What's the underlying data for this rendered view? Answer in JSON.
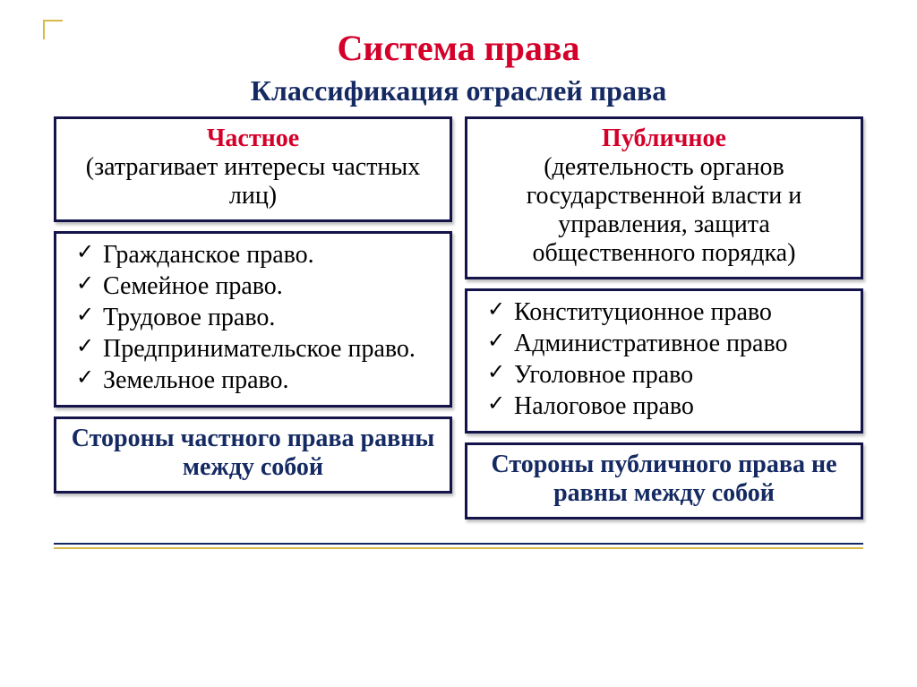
{
  "colors": {
    "title": "#d4002a",
    "subtitle": "#152a63",
    "border": "#14144a",
    "accent_red": "#d4002a",
    "footer_text": "#152a63",
    "rule_blue": "#152a63",
    "rule_gold": "#d9b84a"
  },
  "title": "Система права",
  "subtitle": "Классификация отраслей права",
  "left": {
    "head_label": "Частное",
    "head_desc": "(затрагивает интересы частных лиц)",
    "items": [
      "Гражданское право.",
      "Семейное право.",
      "Трудовое право.",
      "Предпринимательское право.",
      "Земельное право."
    ],
    "footer": "Стороны частного права равны между собой"
  },
  "right": {
    "head_label": "Публичное",
    "head_desc": "(деятельность органов государственной власти и управления, защита общественного порядка)",
    "items": [
      "Конституционное право",
      "Административное право",
      "Уголовное право",
      "Налоговое право"
    ],
    "footer": "Стороны публичного права не равны между собой"
  }
}
